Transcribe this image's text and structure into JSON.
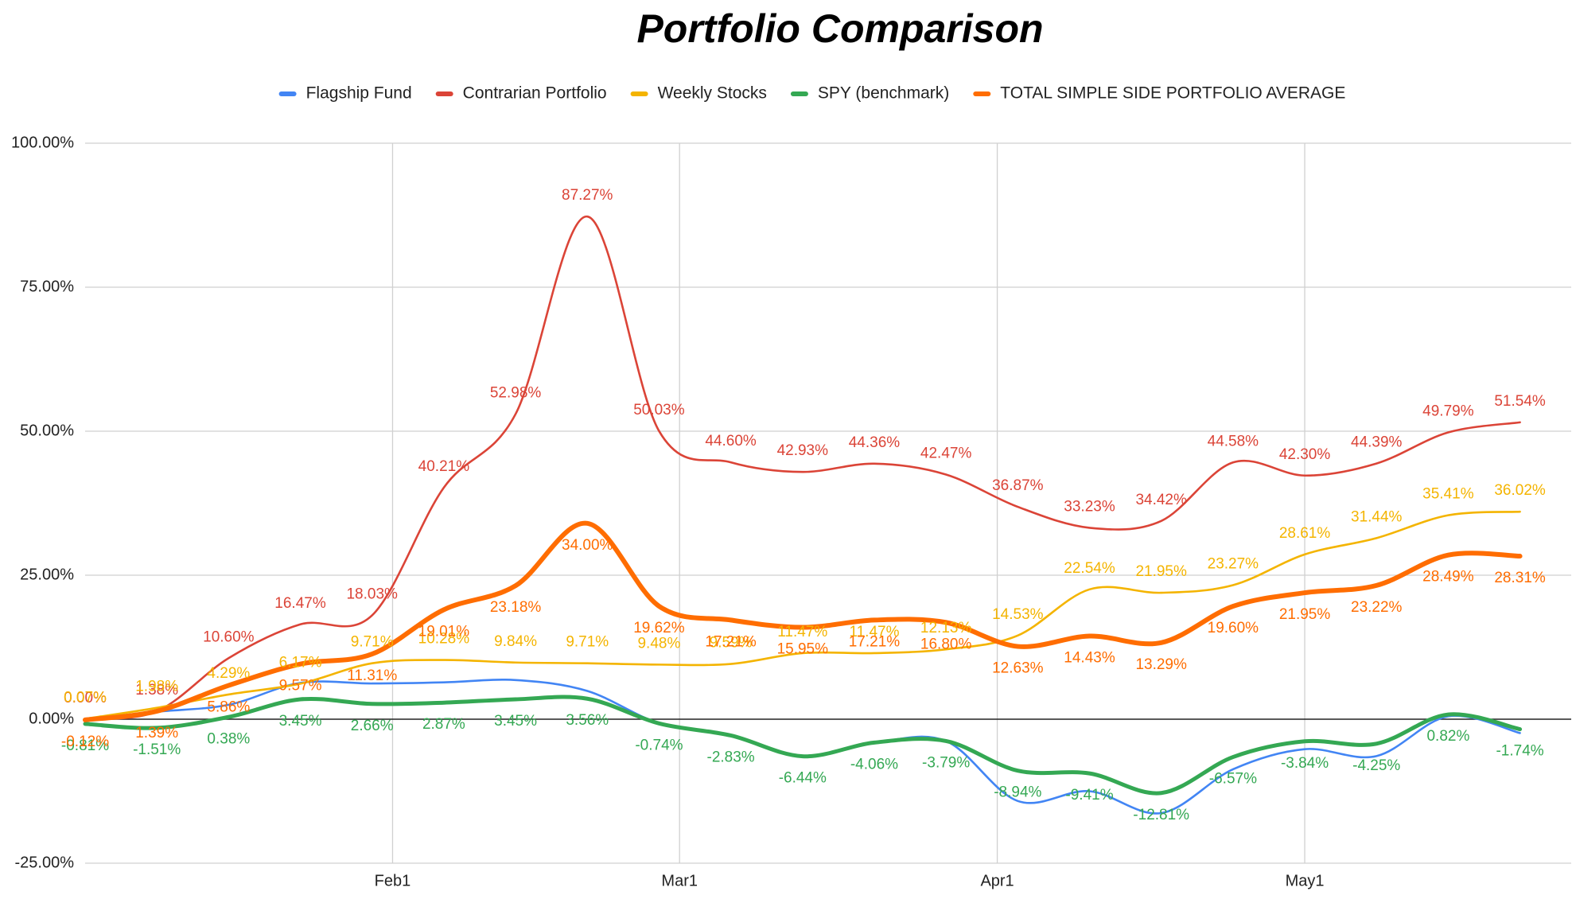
{
  "chart_data": {
    "type": "line",
    "title": "Portfolio Comparison",
    "x": [
      1,
      8,
      15,
      22,
      29,
      36,
      43,
      50,
      57,
      64,
      71,
      78,
      85,
      92,
      99,
      106,
      113,
      120,
      127,
      134,
      141
    ],
    "xlim": [
      1,
      146
    ],
    "xticks": [
      {
        "value": 31,
        "label": "Feb1"
      },
      {
        "value": 59,
        "label": "Mar1"
      },
      {
        "value": 90,
        "label": "Apr1"
      },
      {
        "value": 120,
        "label": "May1"
      }
    ],
    "ylim": [
      -25,
      100
    ],
    "yticks": [
      {
        "value": -25,
        "label": "-25.00%"
      },
      {
        "value": 0,
        "label": "0.00%"
      },
      {
        "value": 25,
        "label": "25.00%"
      },
      {
        "value": 50,
        "label": "50.00%"
      },
      {
        "value": 75,
        "label": "75.00%"
      },
      {
        "value": 100,
        "label": "100.00%"
      }
    ],
    "grid": true,
    "legend": "top",
    "series": [
      {
        "name": "Flagship Fund",
        "color": "#4285f4",
        "values": [
          0,
          1.3,
          2.5,
          6.3,
          6.2,
          6.4,
          6.8,
          4.9,
          -0.7,
          -2.8,
          -6.4,
          -4.1,
          -3.8,
          -14.2,
          -12.5,
          -16.3,
          -8.7,
          -5.2,
          -6.4,
          0.5,
          -2.4
        ]
      },
      {
        "name": "Contrarian Portfolio",
        "color": "#db4437",
        "values": [
          0,
          1.38,
          10.6,
          16.47,
          18.03,
          40.21,
          52.98,
          87.27,
          50.03,
          44.6,
          42.93,
          44.36,
          42.47,
          36.87,
          33.23,
          34.42,
          44.58,
          42.3,
          44.39,
          49.79,
          51.54
        ],
        "value_labels": [
          "0.00%",
          "1.38%",
          "10.60%",
          "16.47%",
          "18.03%",
          "40.21%",
          "52.98%",
          "87.27%",
          "50.03%",
          "44.60%",
          "42.93%",
          "44.36%",
          "42.47%",
          "36.87%",
          "33.23%",
          "34.42%",
          "44.58%",
          "42.30%",
          "44.39%",
          "49.79%",
          "51.54%"
        ]
      },
      {
        "name": "Weekly Stocks",
        "color": "#f4b400",
        "values": [
          0.07,
          1.98,
          4.29,
          6.17,
          9.71,
          10.28,
          9.84,
          9.71,
          9.48,
          9.59,
          11.47,
          11.47,
          12.13,
          14.53,
          22.54,
          21.95,
          23.27,
          28.61,
          31.44,
          35.41,
          36.02
        ],
        "value_labels": [
          "0.07%",
          "1.98%",
          "4.29%",
          "6.17%",
          "9.71%",
          "10.28%",
          "9.84%",
          "9.71%",
          "9.48%",
          "9.59%",
          "11.47%",
          "11.47%",
          "12.13%",
          "14.53%",
          "22.54%",
          "21.95%",
          "23.27%",
          "28.61%",
          "31.44%",
          "35.41%",
          "36.02%"
        ]
      },
      {
        "name": "SPY (benchmark)",
        "color": "#34a853",
        "width": 5,
        "values": [
          -0.81,
          -1.51,
          0.38,
          3.45,
          2.66,
          2.87,
          3.45,
          3.56,
          -0.74,
          -2.83,
          -6.44,
          -4.06,
          -3.79,
          -8.94,
          -9.41,
          -12.81,
          -6.57,
          -3.84,
          -4.25,
          0.82,
          -1.74
        ],
        "value_labels": [
          "-0.81%",
          "-1.51%",
          "0.38%",
          "3.45%",
          "2.66%",
          "2.87%",
          "3.45%",
          "3.56%",
          "-0.74%",
          "-2.83%",
          "-6.44%",
          "-4.06%",
          "-3.79%",
          "-8.94%",
          "-9.41%",
          "-12.81%",
          "-6.57%",
          "-3.84%",
          "-4.25%",
          "0.82%",
          "-1.74%"
        ]
      },
      {
        "name": "TOTAL SIMPLE SIDE PORTFOLIO AVERAGE",
        "color": "#ff6d01",
        "width": 6,
        "values": [
          -0.12,
          1.39,
          5.86,
          9.57,
          11.31,
          19.01,
          23.18,
          34.0,
          19.62,
          17.21,
          15.95,
          17.21,
          16.8,
          12.63,
          14.43,
          13.29,
          19.6,
          21.95,
          23.22,
          28.49,
          28.31
        ],
        "value_labels": [
          "-0.12%",
          "1.39%",
          "5.86%",
          "9.57%",
          "11.31%",
          "19.01%",
          "23.18%",
          "34.00%",
          "19.62%",
          "17.21%",
          "15.95%",
          "17.21%",
          "16.80%",
          "12.63%",
          "14.43%",
          "13.29%",
          "19.60%",
          "21.95%",
          "23.22%",
          "28.49%",
          "28.31%"
        ]
      }
    ]
  }
}
